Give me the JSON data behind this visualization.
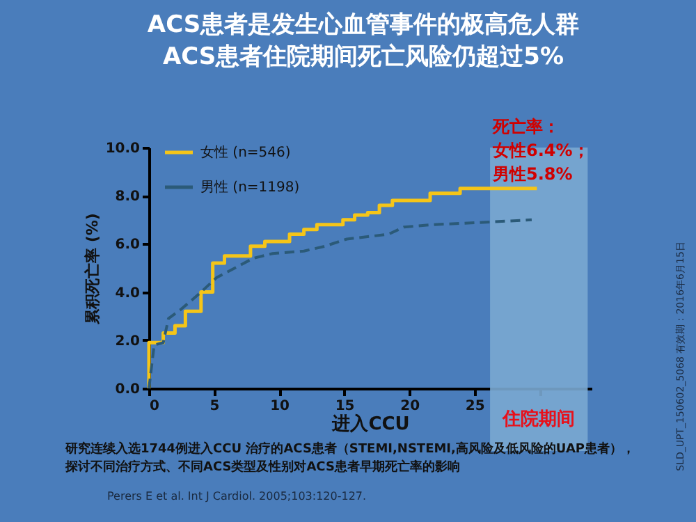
{
  "chart_data": {
    "type": "line",
    "title": "ACS患者是发生心血管事件的极高危人群\nACS患者住院期间死亡风险仍超过5%",
    "xlabel": "进入CCU",
    "ylabel": "累积死亡率 (%)",
    "xlim": [
      0,
      34
    ],
    "xticks": [
      0,
      5,
      10,
      15,
      20,
      25,
      {
        "value": 30,
        "label": null
      }
    ],
    "ylim": [
      0,
      10
    ],
    "yticks": [
      {
        "value": 0,
        "label": "0.0"
      },
      {
        "value": 2,
        "label": "2.0"
      },
      {
        "value": 4,
        "label": "4.0"
      },
      {
        "value": 6,
        "label": "6.0"
      },
      {
        "value": 8,
        "label": "8.0"
      },
      {
        "value": 10,
        "label": "10.0"
      }
    ],
    "grid": false,
    "legend": "top left",
    "marker": "none",
    "series": [
      {
        "name": "女性 (n=546)",
        "color": "#f5c518",
        "type": "step",
        "line_style": "solid",
        "x": [
          0,
          0,
          1.1,
          2.0,
          2.8,
          4.0,
          4.9,
          5.8,
          7.8,
          8.9,
          10.8,
          11.9,
          12.9,
          14.9,
          15.8,
          16.8,
          17.7,
          18.7,
          21.6,
          23.9,
          29.8
        ],
        "values": [
          0,
          1.9,
          2.3,
          2.6,
          3.2,
          4.0,
          5.2,
          5.5,
          5.9,
          6.1,
          6.4,
          6.6,
          6.8,
          7.0,
          7.2,
          7.3,
          7.6,
          7.8,
          8.1,
          8.3,
          8.3
        ]
      },
      {
        "name": "男性 (n=1198)",
        "color": "#2b5a78",
        "line_style": "dashed",
        "x": [
          0,
          0.4,
          1.1,
          1.5,
          2.5,
          3.8,
          5.2,
          8.0,
          9.5,
          11.9,
          13.5,
          15.2,
          18.4,
          19.6,
          21.9,
          25.9,
          29.4
        ],
        "values": [
          0,
          1.8,
          1.9,
          2.9,
          3.3,
          3.9,
          4.6,
          5.4,
          5.6,
          5.7,
          5.9,
          6.2,
          6.4,
          6.7,
          6.8,
          6.9,
          7.0
        ]
      }
    ],
    "bands": [
      {
        "axis": "x",
        "from": 26.2,
        "to": 33.7,
        "label": "住院期间",
        "color": "#7aa8d2"
      }
    ],
    "annotations": [
      "死亡率：",
      "女性6.4%；",
      "男性5.8%",
      "研究连续入选1744例进入CCU 治疗的ACS患者（STEMI,NSTEMI,高风险及低风险的UAP患者），",
      "探讨不同治疗方式、不同ACS类型及性别对ACS患者早期死亡率的影响",
      "Perers E et al. Int J Cardiol. 2005;103:120-127.",
      "SLD_UPT_150602_5068  有效期：2016年6月15日"
    ]
  }
}
